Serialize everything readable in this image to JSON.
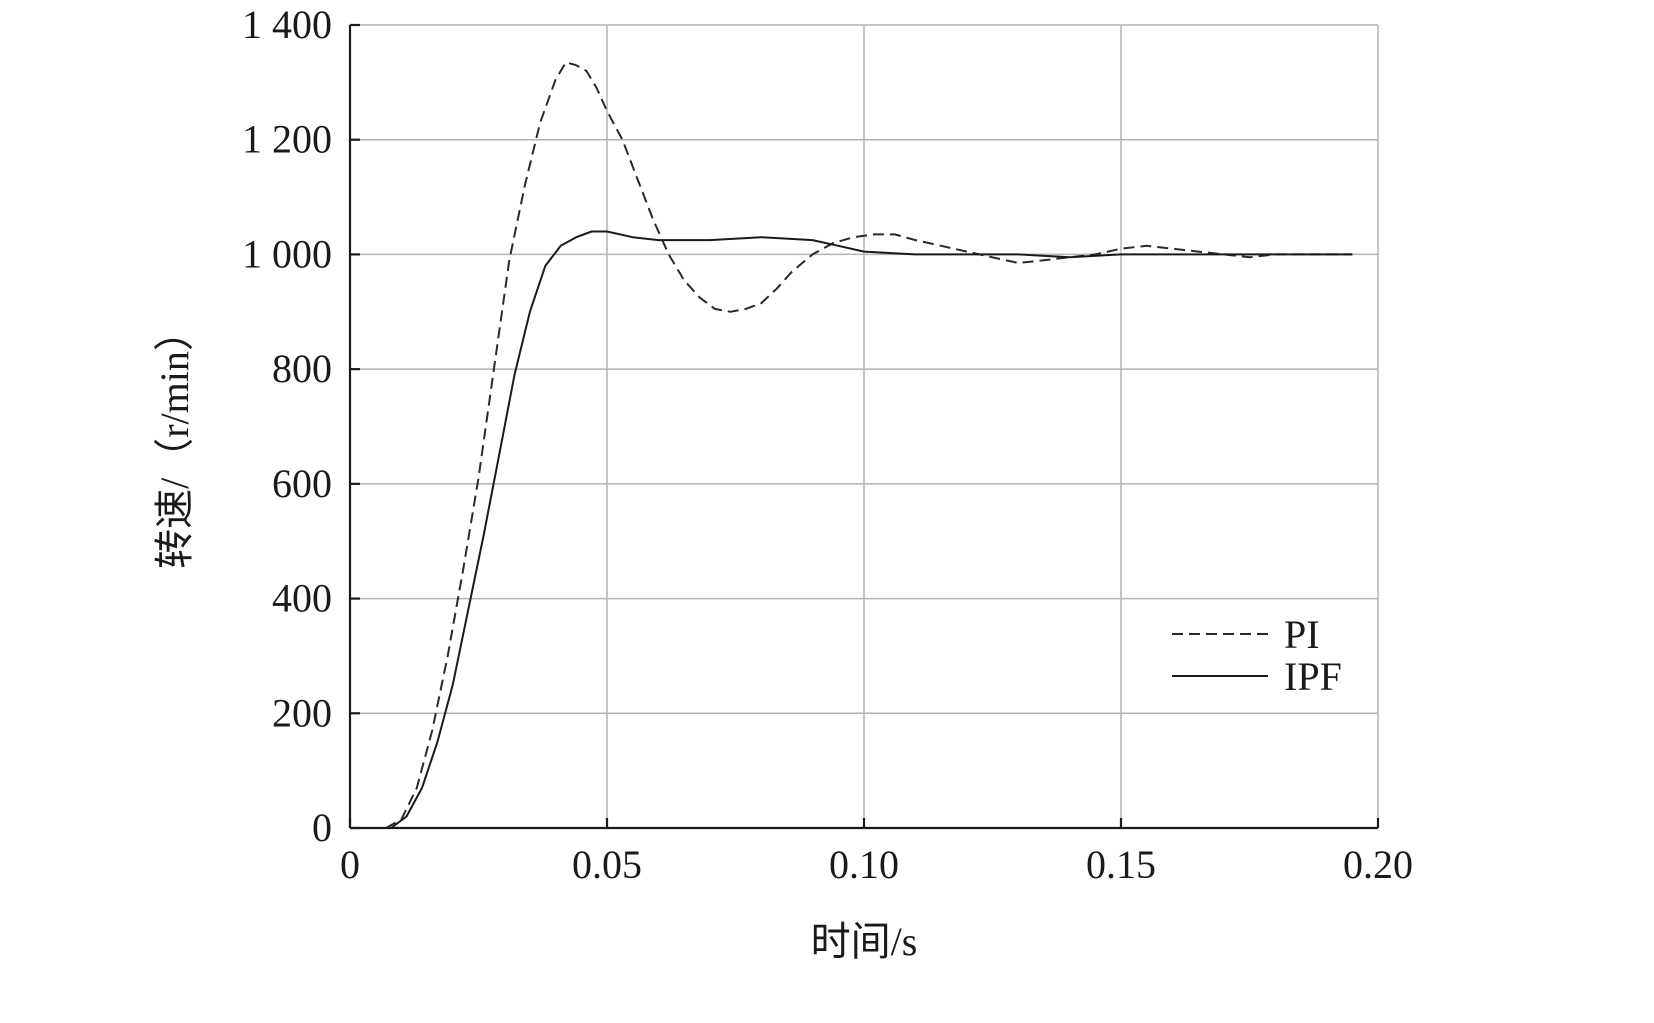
{
  "chart_data": {
    "type": "line",
    "xlabel": "时间/s",
    "ylabel": "转速/（r/min）",
    "xlim": [
      0,
      0.2
    ],
    "ylim": [
      0,
      1400
    ],
    "x_ticks": [
      0,
      0.05,
      0.1,
      0.15,
      0.2
    ],
    "x_tick_labels": [
      "0",
      "0.05",
      "0.10",
      "0.15",
      "0.20"
    ],
    "y_ticks": [
      0,
      200,
      400,
      600,
      800,
      1000,
      1200,
      1400
    ],
    "y_tick_labels": [
      "0",
      "200",
      "400",
      "600",
      "800",
      "1 000",
      "1 200",
      "1 400"
    ],
    "grid": true,
    "legend_position": "bottom-right",
    "series": [
      {
        "name": "PI",
        "style": "dashed",
        "color": "#2a2a2a",
        "points": [
          [
            0.007,
            0
          ],
          [
            0.01,
            15
          ],
          [
            0.013,
            70
          ],
          [
            0.016,
            170
          ],
          [
            0.019,
            300
          ],
          [
            0.022,
            450
          ],
          [
            0.025,
            610
          ],
          [
            0.028,
            800
          ],
          [
            0.031,
            990
          ],
          [
            0.034,
            1120
          ],
          [
            0.037,
            1230
          ],
          [
            0.04,
            1305
          ],
          [
            0.042,
            1335
          ],
          [
            0.044,
            1330
          ],
          [
            0.046,
            1320
          ],
          [
            0.048,
            1290
          ],
          [
            0.05,
            1250
          ],
          [
            0.053,
            1200
          ],
          [
            0.056,
            1130
          ],
          [
            0.059,
            1060
          ],
          [
            0.062,
            1000
          ],
          [
            0.065,
            955
          ],
          [
            0.068,
            925
          ],
          [
            0.071,
            905
          ],
          [
            0.074,
            900
          ],
          [
            0.077,
            905
          ],
          [
            0.08,
            915
          ],
          [
            0.083,
            940
          ],
          [
            0.086,
            970
          ],
          [
            0.09,
            1000
          ],
          [
            0.094,
            1020
          ],
          [
            0.098,
            1030
          ],
          [
            0.102,
            1035
          ],
          [
            0.106,
            1035
          ],
          [
            0.11,
            1025
          ],
          [
            0.115,
            1015
          ],
          [
            0.12,
            1005
          ],
          [
            0.125,
            995
          ],
          [
            0.13,
            985
          ],
          [
            0.135,
            990
          ],
          [
            0.14,
            995
          ],
          [
            0.145,
            1000
          ],
          [
            0.15,
            1010
          ],
          [
            0.155,
            1015
          ],
          [
            0.16,
            1010
          ],
          [
            0.165,
            1005
          ],
          [
            0.17,
            1000
          ],
          [
            0.175,
            995
          ],
          [
            0.18,
            1000
          ],
          [
            0.185,
            1000
          ],
          [
            0.19,
            1000
          ],
          [
            0.195,
            1000
          ]
        ]
      },
      {
        "name": "IPF",
        "style": "solid",
        "color": "#1a1a1a",
        "points": [
          [
            0.008,
            0
          ],
          [
            0.011,
            20
          ],
          [
            0.014,
            70
          ],
          [
            0.017,
            150
          ],
          [
            0.02,
            250
          ],
          [
            0.023,
            380
          ],
          [
            0.026,
            510
          ],
          [
            0.029,
            650
          ],
          [
            0.032,
            790
          ],
          [
            0.035,
            900
          ],
          [
            0.038,
            980
          ],
          [
            0.041,
            1015
          ],
          [
            0.044,
            1030
          ],
          [
            0.047,
            1040
          ],
          [
            0.05,
            1040
          ],
          [
            0.055,
            1030
          ],
          [
            0.06,
            1025
          ],
          [
            0.07,
            1025
          ],
          [
            0.08,
            1030
          ],
          [
            0.09,
            1025
          ],
          [
            0.095,
            1015
          ],
          [
            0.1,
            1005
          ],
          [
            0.11,
            1000
          ],
          [
            0.12,
            1000
          ],
          [
            0.13,
            1000
          ],
          [
            0.14,
            995
          ],
          [
            0.15,
            1000
          ],
          [
            0.16,
            1000
          ],
          [
            0.17,
            1000
          ],
          [
            0.18,
            1000
          ],
          [
            0.19,
            1000
          ],
          [
            0.195,
            1000
          ]
        ]
      }
    ]
  }
}
